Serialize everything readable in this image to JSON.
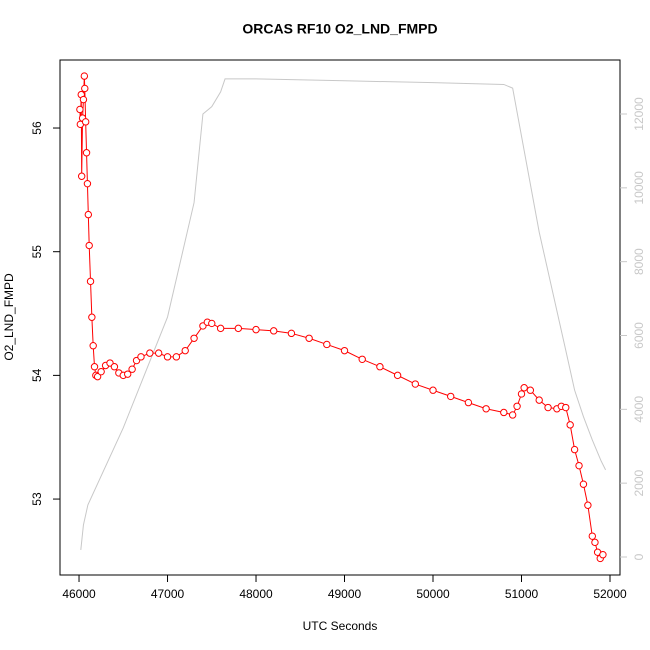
{
  "chart_data": {
    "type": "line",
    "title": "ORCAS RF10 O2_LND_FMPD",
    "xlabel": "UTC Seconds",
    "ylabel": "O2_LND_FMPD",
    "xlim": [
      45785,
      52113
    ],
    "xticks": [
      46000,
      47000,
      48000,
      49000,
      50000,
      51000,
      52000
    ],
    "ylim": [
      52.386,
      56.55
    ],
    "yticks": [
      53,
      54,
      55,
      56
    ],
    "y2lim": [
      -488,
      13463
    ],
    "y2ticks": [
      0,
      2000,
      4000,
      6000,
      8000,
      10000,
      12000
    ],
    "series": [
      {
        "color": "#ff0000",
        "markers": true,
        "x": [
          46010,
          46015,
          46025,
          46030,
          46040,
          46050,
          46060,
          46065,
          46075,
          46085,
          46095,
          46105,
          46115,
          46130,
          46145,
          46160,
          46175,
          46190,
          46210,
          46250,
          46300,
          46350,
          46400,
          46450,
          46500,
          46550,
          46600,
          46650,
          46700,
          46800,
          46900,
          47000,
          47100,
          47200,
          47300,
          47400,
          47450,
          47500,
          47600,
          47800,
          48000,
          48200,
          48400,
          48600,
          48800,
          49000,
          49200,
          49400,
          49600,
          49800,
          50000,
          50200,
          50400,
          50600,
          50800,
          50900,
          50950,
          51000,
          51030,
          51100,
          51200,
          51300,
          51400,
          51450,
          51500,
          51550,
          51600,
          51650,
          51700,
          51750,
          51800,
          51830,
          51860,
          51890,
          51920
        ],
        "values": [
          56.15,
          56.03,
          56.27,
          55.61,
          56.08,
          56.23,
          56.42,
          56.32,
          56.05,
          55.8,
          55.55,
          55.3,
          55.05,
          54.76,
          54.47,
          54.24,
          54.07,
          54.0,
          53.99,
          54.03,
          54.08,
          54.1,
          54.07,
          54.02,
          54.0,
          54.01,
          54.05,
          54.12,
          54.15,
          54.18,
          54.18,
          54.15,
          54.15,
          54.2,
          54.3,
          54.4,
          54.43,
          54.42,
          54.38,
          54.38,
          54.37,
          54.36,
          54.34,
          54.3,
          54.25,
          54.2,
          54.13,
          54.07,
          54.0,
          53.93,
          53.88,
          53.83,
          53.78,
          53.73,
          53.7,
          53.68,
          53.75,
          53.85,
          53.9,
          53.88,
          53.8,
          53.74,
          53.73,
          53.75,
          53.74,
          53.6,
          53.4,
          53.27,
          53.12,
          52.95,
          52.7,
          52.65,
          52.57,
          52.52,
          52.55
        ]
      },
      {
        "color": "#c8c8c8",
        "axis": "y2",
        "markers": false,
        "x": [
          46020,
          46050,
          46100,
          46500,
          47000,
          47300,
          47400,
          47500,
          47600,
          47650,
          48000,
          49000,
          50000,
          50800,
          50900,
          51200,
          51500,
          51600,
          51700,
          51800,
          51900,
          51950
        ],
        "values": [
          190,
          870,
          1410,
          3500,
          6500,
          9600,
          12000,
          12200,
          12600,
          12950,
          12950,
          12900,
          12850,
          12800,
          12700,
          8800,
          5600,
          4520,
          3800,
          3170,
          2600,
          2360
        ]
      }
    ]
  }
}
